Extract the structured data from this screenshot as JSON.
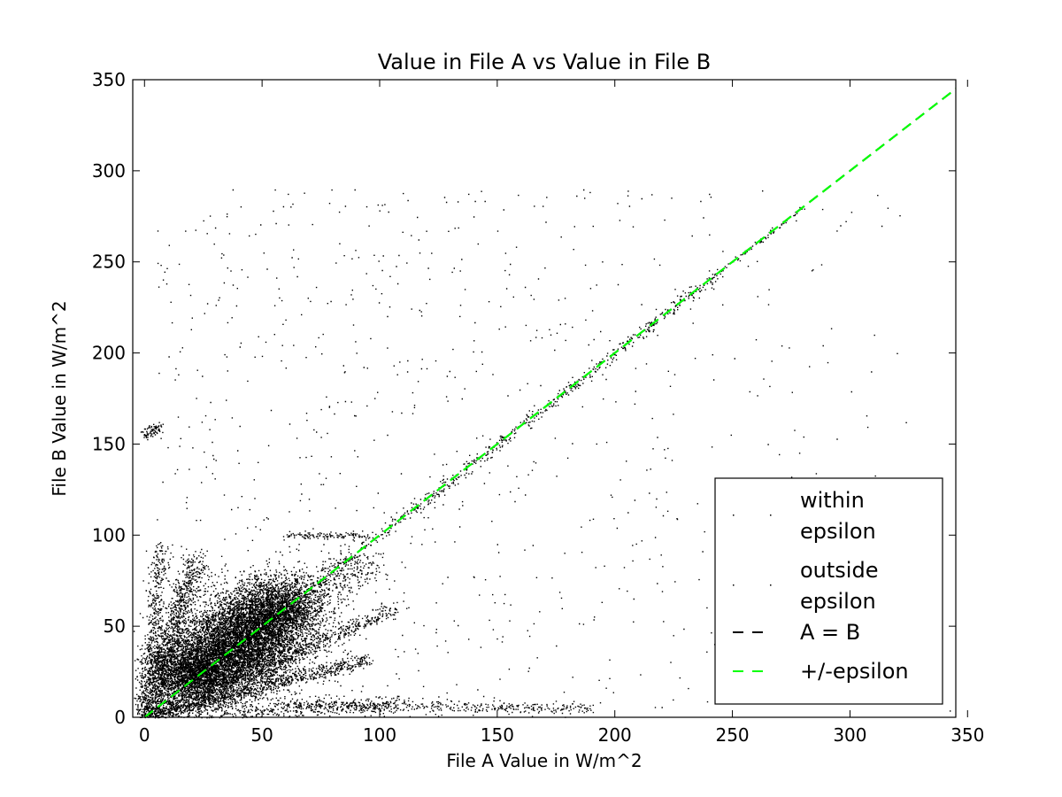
{
  "chart_data": {
    "type": "scatter",
    "title": "Value in File A vs Value in File B",
    "xlabel": "File A Value in W/m^2",
    "ylabel": "File B Value in W/m^2",
    "xlim": [
      -5,
      345
    ],
    "ylim": [
      0,
      350
    ],
    "xticks": [
      0,
      50,
      100,
      150,
      200,
      250,
      300,
      350
    ],
    "yticks": [
      0,
      50,
      100,
      150,
      200,
      250,
      300,
      350
    ],
    "grid": false,
    "legend_position": "lower-right",
    "series": [
      {
        "name": "within epsilon",
        "marker": "point",
        "color": "#000000",
        "clusters": [
          {
            "kind": "band",
            "from": [
              0,
              0
            ],
            "to": [
              245,
              245
            ],
            "spread": 1.5,
            "n": 900
          },
          {
            "kind": "band",
            "from": [
              245,
              245
            ],
            "to": [
              280,
              280
            ],
            "spread": 0.6,
            "n": 60
          },
          {
            "kind": "cloud",
            "center": [
              40,
              40
            ],
            "rx": 30,
            "ry": 25,
            "angle": 45,
            "n": 6000
          },
          {
            "kind": "cloud",
            "center": [
              20,
              25
            ],
            "rx": 18,
            "ry": 20,
            "angle": 60,
            "n": 2500
          }
        ]
      },
      {
        "name": "outside epsilon",
        "marker": "point",
        "color": "#000000",
        "clusters": [
          {
            "kind": "band",
            "from": [
              0,
              0
            ],
            "to": [
              22,
              88
            ],
            "spread": 3,
            "n": 900
          },
          {
            "kind": "band",
            "from": [
              0,
              5
            ],
            "to": [
              7,
              95
            ],
            "spread": 2,
            "n": 400
          },
          {
            "kind": "band",
            "from": [
              0,
              0
            ],
            "to": [
              107,
              60
            ],
            "spread": 2.5,
            "n": 800
          },
          {
            "kind": "band",
            "from": [
              0,
              0
            ],
            "to": [
              95,
              32
            ],
            "spread": 2,
            "n": 700
          },
          {
            "kind": "band",
            "from": [
              0,
              0
            ],
            "to": [
              110,
              8
            ],
            "spread": 3,
            "n": 500
          },
          {
            "kind": "band",
            "from": [
              60,
              7
            ],
            "to": [
              190,
              5
            ],
            "spread": 1.5,
            "n": 400
          },
          {
            "kind": "band",
            "from": [
              0,
              0
            ],
            "to": [
              95,
              88
            ],
            "spread": 6,
            "n": 1200
          },
          {
            "kind": "band",
            "from": [
              0,
              155
            ],
            "to": [
              6,
              160
            ],
            "spread": 1.5,
            "n": 80
          },
          {
            "kind": "band",
            "from": [
              60,
              100
            ],
            "to": [
              95,
              100
            ],
            "spread": 1,
            "n": 120
          },
          {
            "kind": "cloud",
            "center": [
              55,
              60
            ],
            "rx": 20,
            "ry": 18,
            "angle": 30,
            "n": 2000
          },
          {
            "kind": "scatter",
            "x": [
              5,
              345
            ],
            "y": [
              0,
              290
            ],
            "n": 900
          }
        ]
      },
      {
        "name": "A = B",
        "kind": "line",
        "style": "dashed",
        "color": "#000000",
        "x": [
          0,
          345
        ],
        "y": [
          0,
          345
        ]
      },
      {
        "name": "+/-epsilon",
        "kind": "line",
        "style": "dashed",
        "color": "#00ff00",
        "lines": [
          {
            "x": [
              0,
              345
            ],
            "y": [
              0,
              345
            ]
          },
          {
            "x": [
              0,
              345
            ],
            "y": [
              0,
              345
            ]
          }
        ]
      }
    ],
    "legend": [
      {
        "label": "within epsilon",
        "style": "point"
      },
      {
        "label": "outside epsilon",
        "style": "point"
      },
      {
        "label": "A = B",
        "style": "dashed",
        "color": "#000000"
      },
      {
        "label": "+/-epsilon",
        "style": "dashed",
        "color": "#00ff00"
      }
    ]
  }
}
